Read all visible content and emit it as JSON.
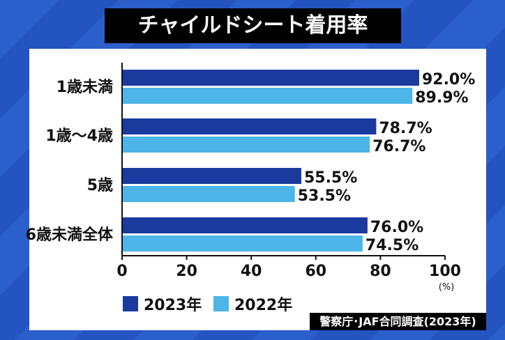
{
  "title": "チャイルドシート着用率",
  "source": "警察庁･JAF合同調査(2023年)",
  "colors": {
    "s2023": "#1b3a9e",
    "s2022": "#4db5e8",
    "background": "#2b5fcc"
  },
  "chart_data": {
    "type": "bar",
    "orientation": "horizontal",
    "title": "チャイルドシート着用率",
    "categories": [
      "1歳未満",
      "1歳～4歳",
      "5歳",
      "6歳未満全体"
    ],
    "series": [
      {
        "name": "2023年",
        "values": [
          92.0,
          78.7,
          55.5,
          76.0
        ],
        "labels": [
          "92.0%",
          "78.7%",
          "55.5%",
          "76.0%"
        ]
      },
      {
        "name": "2022年",
        "values": [
          89.9,
          76.7,
          53.5,
          74.5
        ],
        "labels": [
          "89.9%",
          "76.7%",
          "53.5%",
          "74.5%"
        ]
      }
    ],
    "xlim": [
      0,
      100
    ],
    "xticks": [
      "0",
      "20",
      "40",
      "60",
      "80",
      "100"
    ],
    "xunit": "(%)",
    "grid": false,
    "legend": "bottom-left"
  }
}
